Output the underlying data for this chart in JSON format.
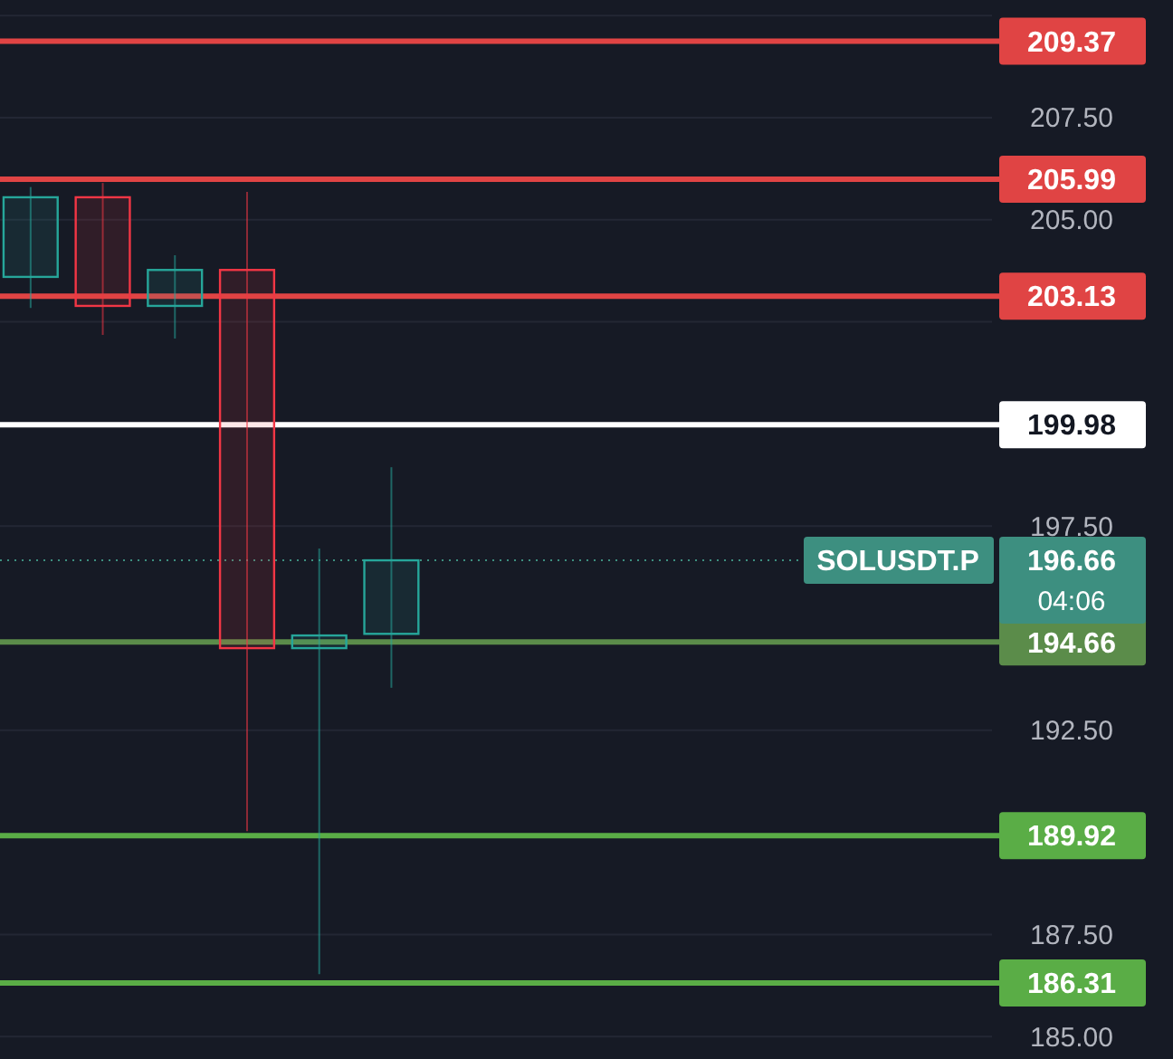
{
  "chart_data": {
    "type": "candlestick",
    "categories": [
      null,
      null,
      null,
      null,
      null,
      null,
      null,
      null,
      null,
      null,
      null,
      null,
      null,
      null
    ],
    "ohlc": [
      [
        203.6,
        205.8,
        202.84,
        205.55
      ],
      [
        205.55,
        205.9,
        202.18,
        202.89
      ],
      [
        202.89,
        204.13,
        202.09,
        203.77
      ],
      [
        203.77,
        205.68,
        190.03,
        194.51
      ],
      [
        194.51,
        196.95,
        186.53,
        194.82
      ],
      [
        194.86,
        198.94,
        193.54,
        196.66
      ],
      null,
      null,
      null,
      null,
      null,
      null,
      null,
      null
    ],
    "colors": [
      "#26a69a",
      "#f23645",
      "#26a69a",
      "#f23645",
      "#26a69a",
      "#26a69a",
      null,
      null,
      null,
      null,
      null,
      null,
      null,
      null
    ],
    "ylim": [
      184.45,
      210.38
    ],
    "yticks": [
      {
        "value": 185,
        "label": "185.00"
      },
      {
        "value": 187.5,
        "label": "187.50"
      },
      {
        "value": 192.5,
        "label": "192.50"
      },
      {
        "value": 197.5,
        "label": "197.50"
      },
      {
        "value": 202.5,
        "label": null
      },
      {
        "value": 205,
        "label": "205.00"
      },
      {
        "value": 207.5,
        "label": "207.50"
      },
      {
        "value": 210,
        "label": null
      }
    ],
    "grid": "y",
    "ref_lines": [
      {
        "axis": "y",
        "value": 209.37,
        "label": "209.37",
        "color": "#e04444"
      },
      {
        "axis": "y",
        "value": 205.99,
        "label": "205.99",
        "color": "#e04444"
      },
      {
        "axis": "y",
        "value": 203.13,
        "label": "203.13",
        "color": "#e04444"
      },
      {
        "axis": "y",
        "value": 199.98,
        "label": "199.98",
        "color": "#ffffff"
      },
      {
        "axis": "y",
        "value": 194.66,
        "label": "194.66",
        "color": "#5b8c4a"
      },
      {
        "axis": "y",
        "value": 189.92,
        "label": "189.92",
        "color": "#5aad46"
      },
      {
        "axis": "y",
        "value": 186.31,
        "label": "186.31",
        "color": "#5aad46"
      },
      {
        "axis": "y",
        "value": 196.66,
        "label": "196.66",
        "color": "#3d8f80",
        "line_style": "dotted"
      }
    ],
    "annotations": [
      {
        "text": "SOLUSDT.P",
        "y": 196.66
      },
      "04:06"
    ]
  }
}
